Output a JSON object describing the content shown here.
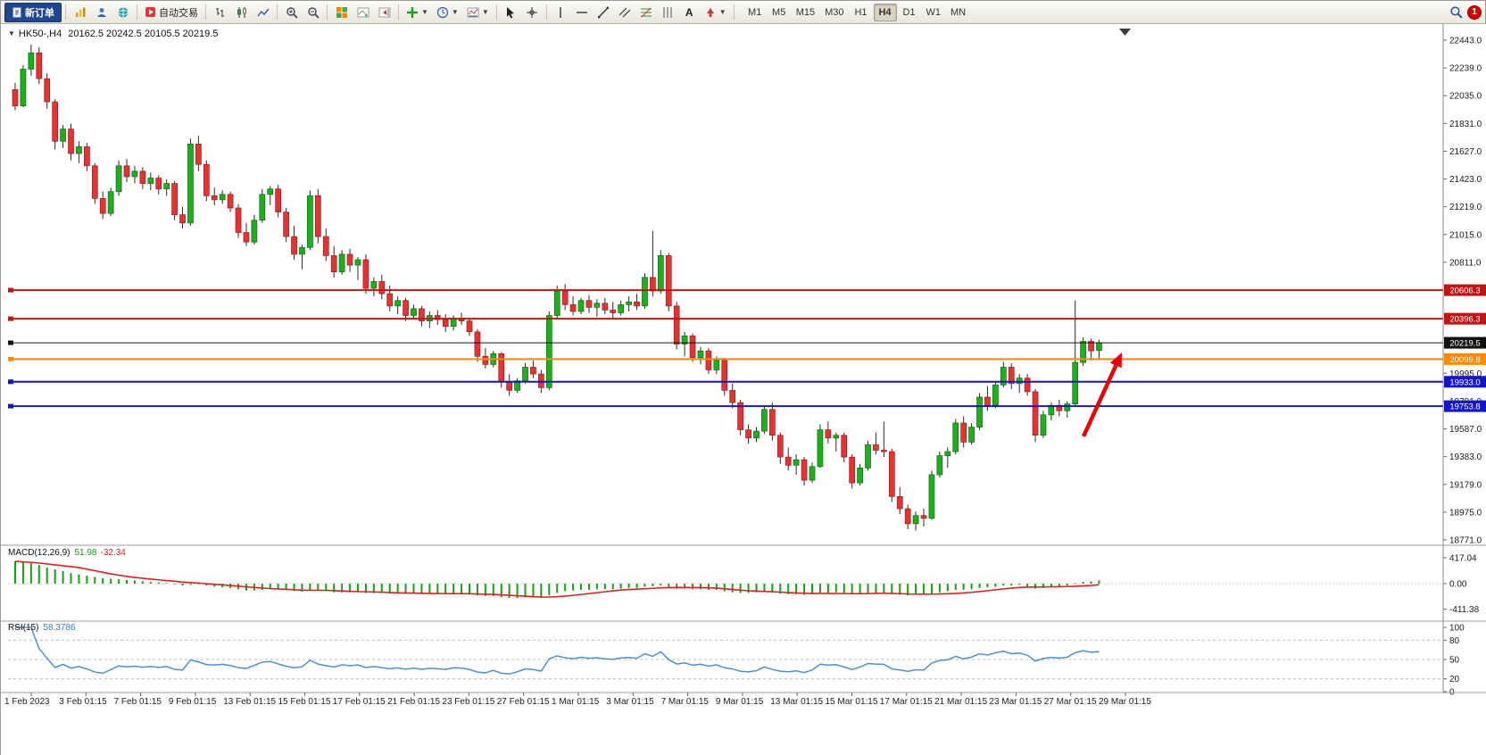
{
  "toolbar": {
    "new_order_label": "新订单",
    "auto_trading_label": "自动交易",
    "text_tool_label": "A",
    "icons": [
      "new-order",
      "new-chart",
      "profiles",
      "fullscreen",
      "auto-trading-play",
      "bar-chart",
      "candlestick-chart",
      "line-chart",
      "zoom-in",
      "zoom-out",
      "tile-windows",
      "auto-scroll",
      "chart-shift",
      "indicators",
      "periods",
      "templates",
      "cursor",
      "crosshair",
      "vertical-line",
      "horizontal-line",
      "trendline",
      "equidistant-channel",
      "fibonacci-retracement",
      "cycle-lines",
      "text",
      "arrows",
      "search",
      "notification"
    ],
    "timeframes": [
      "M1",
      "M5",
      "M15",
      "M30",
      "H1",
      "H4",
      "D1",
      "W1",
      "MN"
    ],
    "active_timeframe": "H4",
    "notification_count": "1"
  },
  "chart": {
    "symbol_label": "HK50-,H4",
    "ohlc_label": "20162.5 20242.5 20105.5 20219.5",
    "price_axis_ticks": [
      22443.0,
      22239.0,
      22035.0,
      21831.0,
      21627.0,
      21423.0,
      21219.0,
      21015.0,
      20811.0,
      19995.0,
      19791.0,
      19587.0,
      19383.0,
      19179.0,
      18975.0,
      18771.0
    ],
    "level_lines": [
      {
        "price": 20606.3,
        "label": "20606.3",
        "color": "#c41212",
        "role": "resistance"
      },
      {
        "price": 20396.3,
        "label": "20396.3",
        "color": "#c41212",
        "role": "resistance"
      },
      {
        "price": 20219.5,
        "label": "20219.5",
        "color": "#111111",
        "role": "current-price"
      },
      {
        "price": 20099.8,
        "label": "20099.8",
        "color": "#ff8a00",
        "role": "support"
      },
      {
        "price": 19933.0,
        "label": "19933.0",
        "color": "#1414cc",
        "role": "support"
      },
      {
        "price": 19753.8,
        "label": "19753.8",
        "color": "#1414cc",
        "role": "support"
      }
    ],
    "time_axis_labels": [
      "1 Feb 2023",
      "3 Feb 01:15",
      "7 Feb 01:15",
      "9 Feb 01:15",
      "13 Feb 01:15",
      "15 Feb 01:15",
      "17 Feb 01:15",
      "21 Feb 01:15",
      "23 Feb 01:15",
      "27 Feb 01:15",
      "1 Mar 01:15",
      "3 Mar 01:15",
      "7 Mar 01:15",
      "9 Mar 01:15",
      "13 Mar 01:15",
      "15 Mar 01:15",
      "17 Mar 01:15",
      "21 Mar 01:15",
      "23 Mar 01:15",
      "27 Mar 01:15",
      "29 Mar 01:15"
    ],
    "annotations": [
      {
        "type": "arrow",
        "direction": "up-right",
        "color": "#e80000"
      }
    ]
  },
  "macd_panel": {
    "label": "MACD(12,26,9)",
    "main_value": "51.98",
    "signal_value": "-32.34",
    "axis_labels": [
      "417.04",
      "0.00",
      "-411.38"
    ],
    "axis_values": [
      417.04,
      0,
      -411.38
    ]
  },
  "rsi_panel": {
    "label": "RSI(15)",
    "value": "58.3786",
    "axis_labels": [
      "100",
      "80",
      "50",
      "20",
      "0"
    ],
    "axis_values": [
      100,
      80,
      50,
      20,
      0
    ],
    "levels": [
      80,
      50,
      20
    ]
  },
  "chart_data": {
    "type": "candlestick",
    "symbol": "HK50-",
    "timeframe": "H4",
    "current_ohlc": {
      "open": 20162.5,
      "high": 20242.5,
      "low": 20105.5,
      "close": 20219.5
    },
    "price_range": [
      18771.0,
      22443.0
    ],
    "horizontal_levels": [
      20606.3,
      20396.3,
      20219.5,
      20099.8,
      19933.0,
      19753.8
    ],
    "macd_main_current": 51.98,
    "macd_signal_current": -32.34,
    "macd_axis_range": [
      -411.38,
      417.04
    ],
    "rsi_period": 15,
    "rsi_current": 58.3786,
    "candles_ohlc": [
      [
        22080,
        22130,
        21930,
        21960
      ],
      [
        21960,
        22260,
        21950,
        22230
      ],
      [
        22230,
        22410,
        22180,
        22350
      ],
      [
        22350,
        22390,
        22120,
        22160
      ],
      [
        22160,
        22200,
        21940,
        21990
      ],
      [
        21990,
        22010,
        21640,
        21700
      ],
      [
        21700,
        21820,
        21650,
        21790
      ],
      [
        21790,
        21830,
        21560,
        21610
      ],
      [
        21610,
        21700,
        21540,
        21660
      ],
      [
        21660,
        21690,
        21480,
        21520
      ],
      [
        21520,
        21540,
        21240,
        21280
      ],
      [
        21280,
        21330,
        21130,
        21170
      ],
      [
        21170,
        21360,
        21150,
        21330
      ],
      [
        21330,
        21560,
        21300,
        21520
      ],
      [
        21520,
        21570,
        21400,
        21440
      ],
      [
        21440,
        21520,
        21390,
        21480
      ],
      [
        21480,
        21510,
        21350,
        21390
      ],
      [
        21390,
        21470,
        21340,
        21430
      ],
      [
        21430,
        21450,
        21310,
        21350
      ],
      [
        21350,
        21420,
        21300,
        21390
      ],
      [
        21390,
        21410,
        21120,
        21160
      ],
      [
        21160,
        21220,
        21060,
        21100
      ],
      [
        21100,
        21720,
        21080,
        21680
      ],
      [
        21680,
        21740,
        21480,
        21530
      ],
      [
        21530,
        21560,
        21260,
        21300
      ],
      [
        21300,
        21360,
        21230,
        21270
      ],
      [
        21270,
        21340,
        21240,
        21310
      ],
      [
        21310,
        21330,
        21180,
        21210
      ],
      [
        21210,
        21240,
        20990,
        21030
      ],
      [
        21030,
        21100,
        20930,
        20960
      ],
      [
        20960,
        21160,
        20940,
        21120
      ],
      [
        21120,
        21350,
        21100,
        21310
      ],
      [
        21310,
        21370,
        21230,
        21350
      ],
      [
        21350,
        21380,
        21140,
        21180
      ],
      [
        21180,
        21210,
        20960,
        21000
      ],
      [
        21000,
        21080,
        20830,
        20870
      ],
      [
        20870,
        20940,
        20760,
        20920
      ],
      [
        20920,
        21340,
        20900,
        21300
      ],
      [
        21300,
        21350,
        20950,
        21000
      ],
      [
        21000,
        21060,
        20820,
        20860
      ],
      [
        20860,
        20930,
        20700,
        20740
      ],
      [
        20740,
        20900,
        20720,
        20870
      ],
      [
        20870,
        20910,
        20740,
        20790
      ],
      [
        20790,
        20850,
        20680,
        20830
      ],
      [
        20830,
        20870,
        20580,
        20620
      ],
      [
        20620,
        20700,
        20560,
        20670
      ],
      [
        20670,
        20720,
        20540,
        20580
      ],
      [
        20580,
        20640,
        20450,
        20490
      ],
      [
        20490,
        20560,
        20430,
        20530
      ],
      [
        20530,
        20550,
        20380,
        20420
      ],
      [
        20420,
        20500,
        20390,
        20470
      ],
      [
        20470,
        20490,
        20340,
        20380
      ],
      [
        20380,
        20450,
        20330,
        20420
      ],
      [
        20420,
        20460,
        20350,
        20390
      ],
      [
        20390,
        20430,
        20300,
        20340
      ],
      [
        20340,
        20420,
        20310,
        20400
      ],
      [
        20400,
        20440,
        20350,
        20380
      ],
      [
        20380,
        20400,
        20270,
        20300
      ],
      [
        20300,
        20320,
        20080,
        20120
      ],
      [
        20120,
        20180,
        20030,
        20060
      ],
      [
        20060,
        20160,
        20040,
        20140
      ],
      [
        20140,
        20150,
        19890,
        19930
      ],
      [
        19930,
        19990,
        19830,
        19870
      ],
      [
        19870,
        19960,
        19850,
        19940
      ],
      [
        19940,
        20070,
        19920,
        20040
      ],
      [
        20040,
        20090,
        19960,
        19990
      ],
      [
        19990,
        20020,
        19850,
        19890
      ],
      [
        19890,
        20450,
        19870,
        20420
      ],
      [
        20420,
        20640,
        20400,
        20600
      ],
      [
        20600,
        20650,
        20460,
        20500
      ],
      [
        20500,
        20560,
        20420,
        20450
      ],
      [
        20450,
        20550,
        20430,
        20530
      ],
      [
        20530,
        20570,
        20440,
        20480
      ],
      [
        20480,
        20540,
        20410,
        20510
      ],
      [
        20510,
        20550,
        20430,
        20460
      ],
      [
        20460,
        20520,
        20400,
        20440
      ],
      [
        20440,
        20530,
        20420,
        20500
      ],
      [
        20500,
        20560,
        20450,
        20520
      ],
      [
        20520,
        20580,
        20460,
        20490
      ],
      [
        20490,
        20730,
        20470,
        20700
      ],
      [
        20700,
        21040,
        20560,
        20600
      ],
      [
        20600,
        20900,
        20580,
        20860
      ],
      [
        20860,
        20880,
        20450,
        20490
      ],
      [
        20490,
        20520,
        20170,
        20210
      ],
      [
        20210,
        20300,
        20120,
        20270
      ],
      [
        20270,
        20290,
        20080,
        20110
      ],
      [
        20110,
        20190,
        20060,
        20160
      ],
      [
        20160,
        20180,
        19990,
        20020
      ],
      [
        20020,
        20120,
        19990,
        20090
      ],
      [
        20090,
        20110,
        19830,
        19870
      ],
      [
        19870,
        19920,
        19740,
        19780
      ],
      [
        19780,
        19800,
        19540,
        19580
      ],
      [
        19580,
        19620,
        19480,
        19520
      ],
      [
        19520,
        19600,
        19490,
        19570
      ],
      [
        19570,
        19760,
        19550,
        19730
      ],
      [
        19730,
        19780,
        19500,
        19540
      ],
      [
        19540,
        19560,
        19330,
        19380
      ],
      [
        19380,
        19450,
        19280,
        19320
      ],
      [
        19320,
        19400,
        19250,
        19360
      ],
      [
        19360,
        19380,
        19170,
        19210
      ],
      [
        19210,
        19340,
        19190,
        19310
      ],
      [
        19310,
        19620,
        19300,
        19580
      ],
      [
        19580,
        19640,
        19480,
        19520
      ],
      [
        19520,
        19560,
        19420,
        19540
      ],
      [
        19540,
        19560,
        19340,
        19380
      ],
      [
        19380,
        19400,
        19150,
        19190
      ],
      [
        19190,
        19330,
        19170,
        19300
      ],
      [
        19300,
        19500,
        19280,
        19470
      ],
      [
        19470,
        19560,
        19400,
        19430
      ],
      [
        19430,
        19640,
        19380,
        19420
      ],
      [
        19420,
        19440,
        19050,
        19090
      ],
      [
        19090,
        19160,
        18960,
        19000
      ],
      [
        19000,
        19030,
        18850,
        18890
      ],
      [
        18890,
        18980,
        18840,
        18950
      ],
      [
        18950,
        19000,
        18870,
        18930
      ],
      [
        18930,
        19280,
        18920,
        19250
      ],
      [
        19250,
        19420,
        19230,
        19390
      ],
      [
        19390,
        19450,
        19300,
        19420
      ],
      [
        19420,
        19660,
        19400,
        19630
      ],
      [
        19630,
        19680,
        19450,
        19490
      ],
      [
        19490,
        19630,
        19470,
        19600
      ],
      [
        19600,
        19850,
        19580,
        19820
      ],
      [
        19820,
        19900,
        19720,
        19760
      ],
      [
        19760,
        19940,
        19740,
        19910
      ],
      [
        19910,
        20080,
        19890,
        20040
      ],
      [
        20040,
        20070,
        19880,
        19920
      ],
      [
        19920,
        19990,
        19850,
        19960
      ],
      [
        19960,
        19990,
        19830,
        19860
      ],
      [
        19860,
        19880,
        19490,
        19540
      ],
      [
        19540,
        19720,
        19520,
        19690
      ],
      [
        19690,
        19780,
        19650,
        19760
      ],
      [
        19760,
        19800,
        19680,
        19720
      ],
      [
        19720,
        19790,
        19670,
        19770
      ],
      [
        19770,
        20530,
        19750,
        20075
      ],
      [
        20075,
        20260,
        20050,
        20230
      ],
      [
        20230,
        20250,
        20090,
        20160
      ],
      [
        20162.5,
        20242.5,
        20105.5,
        20219.5
      ]
    ],
    "macd_histogram": [
      360,
      340,
      330,
      300,
      260,
      230,
      200,
      170,
      150,
      130,
      110,
      90,
      80,
      70,
      60,
      50,
      40,
      30,
      20,
      10,
      -10,
      -30,
      -20,
      -10,
      -30,
      -50,
      -60,
      -70,
      -90,
      -110,
      -110,
      -100,
      -90,
      -90,
      -100,
      -120,
      -130,
      -110,
      -110,
      -120,
      -140,
      -140,
      -140,
      -140,
      -150,
      -150,
      -150,
      -160,
      -160,
      -160,
      -160,
      -170,
      -160,
      -160,
      -160,
      -160,
      -160,
      -170,
      -190,
      -200,
      -200,
      -220,
      -230,
      -230,
      -220,
      -220,
      -230,
      -190,
      -150,
      -120,
      -110,
      -100,
      -100,
      -90,
      -90,
      -90,
      -80,
      -70,
      -70,
      -50,
      -40,
      -30,
      -50,
      -80,
      -80,
      -90,
      -90,
      -100,
      -100,
      -120,
      -140,
      -150,
      -150,
      -140,
      -130,
      -140,
      -160,
      -170,
      -170,
      -180,
      -170,
      -150,
      -150,
      -140,
      -150,
      -170,
      -170,
      -160,
      -150,
      -150,
      -170,
      -180,
      -190,
      -180,
      -180,
      -160,
      -140,
      -120,
      -100,
      -100,
      -90,
      -70,
      -60,
      -50,
      -30,
      -30,
      -20,
      -60,
      -80,
      -70,
      -60,
      -40,
      -30,
      10,
      30,
      35,
      52
    ]
  }
}
